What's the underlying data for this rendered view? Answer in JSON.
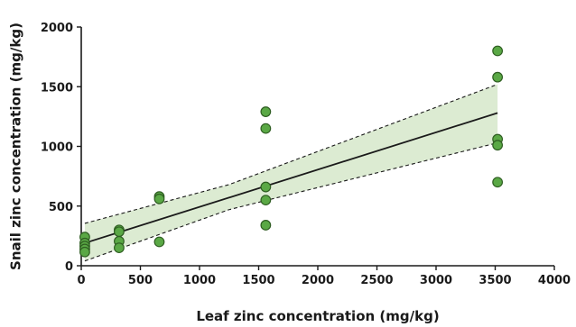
{
  "chart_data": {
    "type": "scatter",
    "title": "",
    "xlabel": "Leaf zinc concentration (mg/kg)",
    "ylabel": "Snail zinc concentration (mg/kg)",
    "xlim": [
      0,
      4000
    ],
    "ylim": [
      0,
      2000
    ],
    "x_ticks": [
      0,
      500,
      1000,
      1500,
      2000,
      2500,
      3000,
      3500,
      4000
    ],
    "y_ticks": [
      0,
      500,
      1000,
      1500,
      2000
    ],
    "grid": false,
    "legend": "none",
    "point_color": "#5aa845",
    "point_edge_color": "#2f5e22",
    "band_fill_color": "#dcebd2",
    "line_color": "#1a1a1a",
    "series": [
      {
        "points": [
          {
            "x": 30,
            "y": 240
          },
          {
            "x": 30,
            "y": 190
          },
          {
            "x": 30,
            "y": 165
          },
          {
            "x": 30,
            "y": 140
          },
          {
            "x": 30,
            "y": 115
          },
          {
            "x": 320,
            "y": 300
          },
          {
            "x": 320,
            "y": 285
          },
          {
            "x": 320,
            "y": 205
          },
          {
            "x": 320,
            "y": 150
          },
          {
            "x": 660,
            "y": 580
          },
          {
            "x": 660,
            "y": 560
          },
          {
            "x": 660,
            "y": 200
          },
          {
            "x": 1560,
            "y": 1290
          },
          {
            "x": 1560,
            "y": 1150
          },
          {
            "x": 1560,
            "y": 660
          },
          {
            "x": 1560,
            "y": 550
          },
          {
            "x": 1560,
            "y": 340
          },
          {
            "x": 3520,
            "y": 1800
          },
          {
            "x": 3520,
            "y": 1580
          },
          {
            "x": 3520,
            "y": 1060
          },
          {
            "x": 3520,
            "y": 1010
          },
          {
            "x": 3520,
            "y": 700
          }
        ]
      }
    ],
    "fit_line": [
      {
        "x": 30,
        "y": 190
      },
      {
        "x": 3520,
        "y": 1280
      }
    ],
    "confidence_upper": [
      {
        "x": 30,
        "y": 355
      },
      {
        "x": 1250,
        "y": 680
      },
      {
        "x": 3520,
        "y": 1520
      }
    ],
    "confidence_lower": [
      {
        "x": 30,
        "y": 40
      },
      {
        "x": 1250,
        "y": 470
      },
      {
        "x": 3520,
        "y": 1030
      }
    ]
  }
}
